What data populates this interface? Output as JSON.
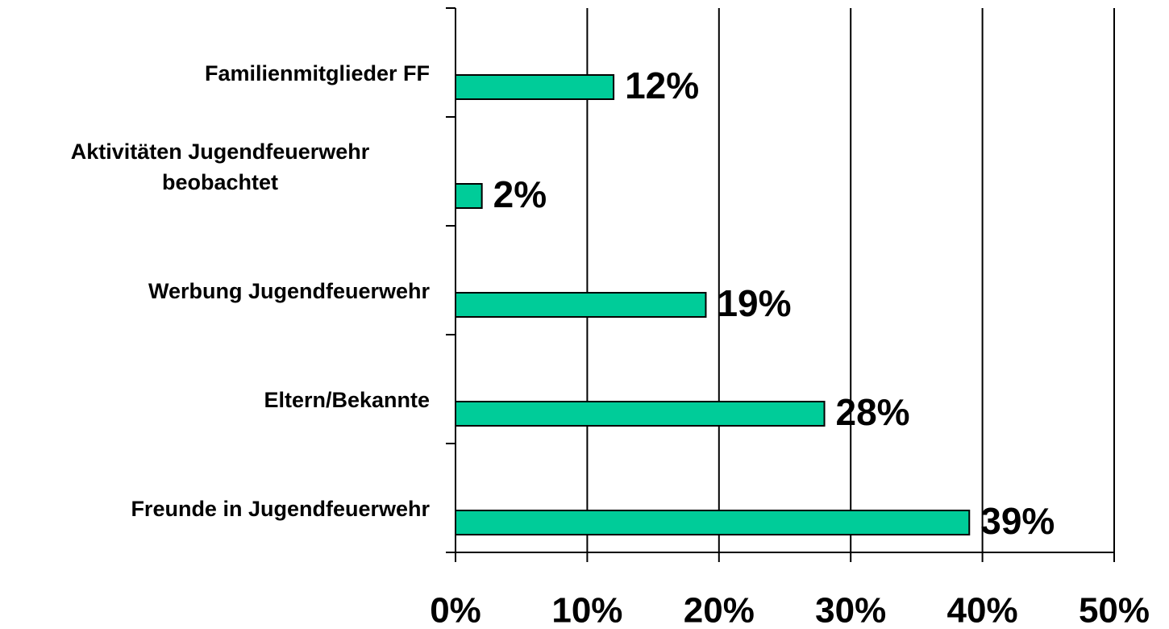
{
  "chart_data": {
    "type": "bar",
    "orientation": "horizontal",
    "categories": [
      "Familienmitglieder FF",
      "Aktivitäten Jugendfeuerwehr beobachtet",
      "Werbung Jugendfeuerwehr",
      "Eltern/Bekannte",
      "Freunde in Jugendfeuerwehr"
    ],
    "values": [
      12,
      2,
      19,
      28,
      39
    ],
    "value_labels": [
      "12%",
      "2%",
      "19%",
      "28%",
      "39%"
    ],
    "color": "#00cc99",
    "xlim": [
      0,
      50
    ],
    "xticks": [
      {
        "value": 0,
        "label": "0%"
      },
      {
        "value": 10,
        "label": "10%"
      },
      {
        "value": 20,
        "label": "20%"
      },
      {
        "value": 30,
        "label": "30%"
      },
      {
        "value": 40,
        "label": "40%"
      },
      {
        "value": 50,
        "label": "50%"
      }
    ],
    "grid": true
  }
}
